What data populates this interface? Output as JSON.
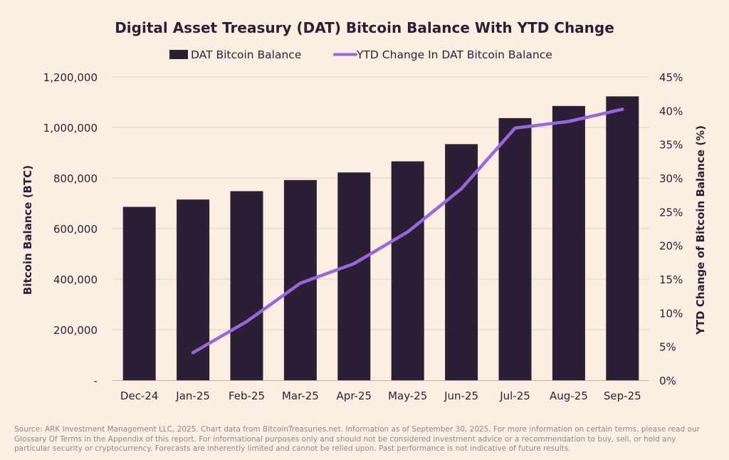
{
  "chart_data": {
    "type": "bar",
    "title": "Digital Asset Treasury (DAT) Bitcoin Balance With YTD Change",
    "categories": [
      "Dec-24",
      "Jan-25",
      "Feb-25",
      "Mar-25",
      "Apr-25",
      "May-25",
      "Jun-25",
      "Jul-25",
      "Aug-25",
      "Sep-25"
    ],
    "series": [
      {
        "name": "DAT Bitcoin Balance",
        "type": "bar",
        "axis": "left",
        "color": "#2b1f35",
        "values": [
          686000,
          715000,
          748000,
          792000,
          822000,
          866000,
          934000,
          1037000,
          1085000,
          1123000
        ]
      },
      {
        "name": "YTD Change In DAT Bitcoin Balance",
        "type": "line",
        "axis": "right",
        "color": "#9966dd",
        "values": [
          null,
          4.1,
          8.7,
          14.4,
          17.3,
          22.0,
          28.4,
          37.4,
          38.4,
          40.2
        ]
      }
    ],
    "ylabel": "Bitcoin Balance (BTC)",
    "ylabel_right": "YTD Change of Bitcoin Balance (%)",
    "ylim": [
      0,
      1200000
    ],
    "ylim_right": [
      0,
      45
    ],
    "y_ticks": [
      "-",
      "200,000",
      "400,000",
      "600,000",
      "800,000",
      "1,000,000",
      "1,200,000"
    ],
    "y_ticks_right": [
      "0%",
      "5%",
      "10%",
      "15%",
      "20%",
      "25%",
      "30%",
      "35%",
      "40%",
      "45%"
    ],
    "grid": true,
    "legend_position": "top-center"
  },
  "source": "Source: ARK Investment Management LLC, 2025. Chart data from BitcoinTreasuries.net. Information as of September 30, 2025. For more information on certain terms, please read our Glossary Of Terms in the Appendix of this report. For informational purposes only and should not be considered investment advice or a recommendation to buy, sell, or hold any particular security or cryptocurrency. Forecasts are inherently limited and cannot be relied upon. Past performance is not indicative of future results."
}
